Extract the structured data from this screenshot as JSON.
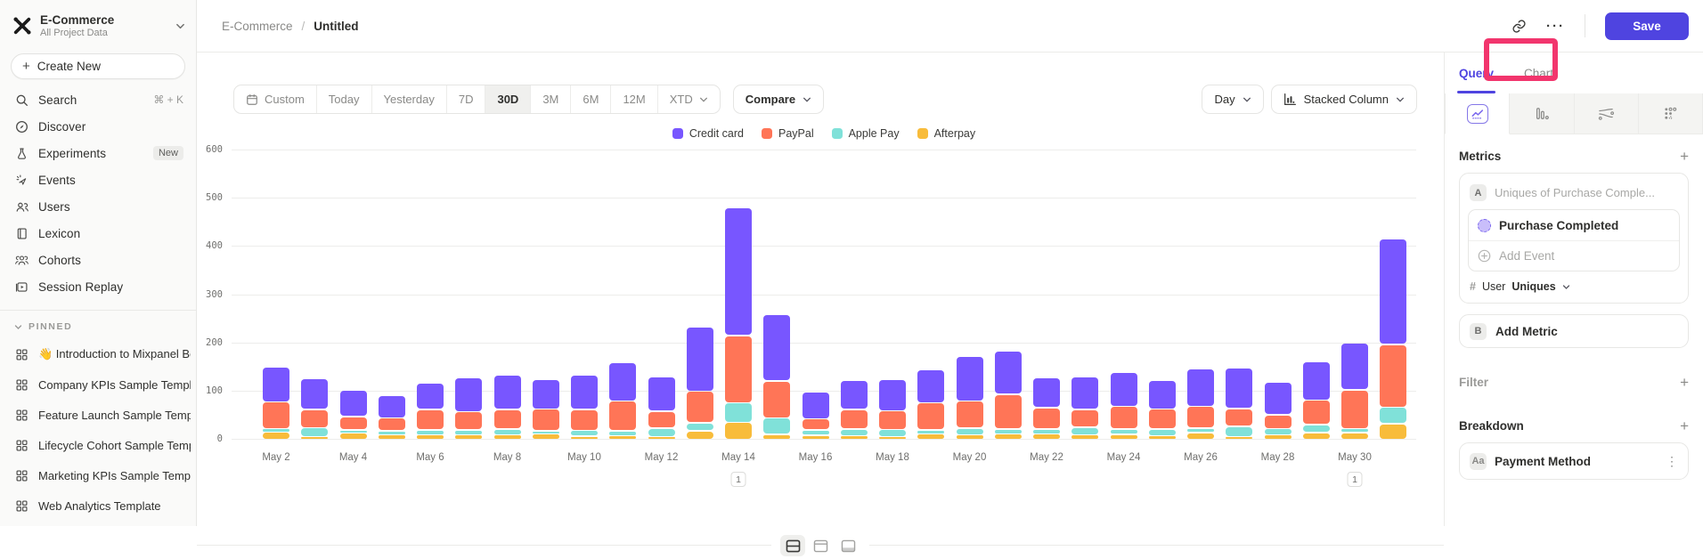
{
  "accent_color": "#4f44e0",
  "highlight_color": "#f2356d",
  "sidebar": {
    "project": {
      "name": "E-Commerce",
      "subtitle": "All Project Data"
    },
    "create_new_label": "Create New",
    "items": [
      {
        "id": "search",
        "label": "Search",
        "icon": "search",
        "shortcut": "⌘ + K"
      },
      {
        "id": "discover",
        "label": "Discover",
        "icon": "compass"
      },
      {
        "id": "experiments",
        "label": "Experiments",
        "icon": "flask",
        "badge": "New"
      },
      {
        "id": "events",
        "label": "Events",
        "icon": "spark"
      },
      {
        "id": "users",
        "label": "Users",
        "icon": "users"
      },
      {
        "id": "lexicon",
        "label": "Lexicon",
        "icon": "book"
      },
      {
        "id": "cohorts",
        "label": "Cohorts",
        "icon": "cohorts"
      },
      {
        "id": "session-replay",
        "label": "Session Replay",
        "icon": "replay"
      }
    ],
    "pinned_title": "PINNED",
    "pinned": [
      {
        "id": "intro",
        "label": "👋 Introduction to Mixpanel Bo"
      },
      {
        "id": "company-kpis",
        "label": "Company KPIs Sample Templat"
      },
      {
        "id": "feature-launch",
        "label": "Feature Launch Sample Templa"
      },
      {
        "id": "lifecycle",
        "label": "Lifecycle Cohort Sample Temp"
      },
      {
        "id": "marketing-kpis",
        "label": "Marketing KPIs Sample Templat"
      },
      {
        "id": "web-analytics",
        "label": "Web Analytics Template"
      }
    ]
  },
  "header": {
    "breadcrumb_root": "E-Commerce",
    "breadcrumb_sep": "/",
    "breadcrumb_current": "Untitled",
    "save_label": "Save",
    "ellipsis": "···"
  },
  "toolbar": {
    "ranges": [
      "Custom",
      "Today",
      "Yesterday",
      "7D",
      "30D",
      "3M",
      "6M",
      "12M",
      "XTD"
    ],
    "active_range": "30D",
    "compare_label": "Compare",
    "granularity_label": "Day",
    "chart_type_label": "Stacked Column"
  },
  "right_panel": {
    "tabs": [
      "Query",
      "Chart"
    ],
    "active_tab": "Query",
    "metrics_title": "Metrics",
    "metric_a": {
      "badge": "A",
      "summary": "Uniques of Purchase Comple...",
      "event_name": "Purchase Completed",
      "add_event_label": "Add Event",
      "measure_symbol": "#",
      "measure_entity": "User",
      "measure_type": "Uniques"
    },
    "metric_b": {
      "badge": "B",
      "label": "Add Metric"
    },
    "filter_title": "Filter",
    "breakdown_title": "Breakdown",
    "breakdown_item": {
      "badge": "Aa",
      "label": "Payment Method"
    }
  },
  "chart_data": {
    "type": "bar",
    "stacked": true,
    "title": "",
    "xlabel": "",
    "ylabel": "",
    "ylim": [
      0,
      600
    ],
    "yticks": [
      0,
      100,
      200,
      300,
      400,
      500,
      600
    ],
    "grid": true,
    "legend_position": "top",
    "categories": [
      "May 2",
      "May 3",
      "May 4",
      "May 5",
      "May 6",
      "May 7",
      "May 8",
      "May 9",
      "May 10",
      "May 11",
      "May 12",
      "May 13",
      "May 14",
      "May 15",
      "May 16",
      "May 17",
      "May 18",
      "May 19",
      "May 20",
      "May 21",
      "May 22",
      "May 23",
      "May 24",
      "May 25",
      "May 26",
      "May 27",
      "May 28",
      "May 29",
      "May 30",
      "May 31"
    ],
    "x_tick_labels": [
      "May 2",
      "May 4",
      "May 6",
      "May 8",
      "May 10",
      "May 12",
      "May 14",
      "May 16",
      "May 18",
      "May 20",
      "May 22",
      "May 24",
      "May 26",
      "May 28",
      "May 30"
    ],
    "series": [
      {
        "name": "Credit card",
        "color": "#7856FF",
        "values": [
          72,
          64,
          55,
          46,
          56,
          70,
          71,
          62,
          71,
          80,
          71,
          133,
          265,
          138,
          56,
          61,
          66,
          69,
          92,
          89,
          62,
          69,
          70,
          59,
          77,
          85,
          69,
          80,
          97,
          220
        ]
      },
      {
        "name": "PayPal",
        "color": "#FF7557",
        "values": [
          55,
          38,
          28,
          27,
          42,
          38,
          40,
          45,
          43,
          62,
          35,
          65,
          140,
          76,
          23,
          40,
          39,
          56,
          56,
          72,
          44,
          37,
          47,
          41,
          45,
          37,
          28,
          51,
          80,
          130
        ]
      },
      {
        "name": "Apple Pay",
        "color": "#80E1D9",
        "values": [
          8,
          18,
          7,
          8,
          10,
          10,
          12,
          5,
          12,
          10,
          17,
          17,
          40,
          34,
          11,
          14,
          14,
          8,
          14,
          10,
          10,
          15,
          11,
          14,
          10,
          21,
          13,
          17,
          9,
          34
        ]
      },
      {
        "name": "Afterpay",
        "color": "#F8BC3B",
        "values": [
          15,
          5,
          13,
          10,
          10,
          10,
          10,
          12,
          7,
          8,
          5,
          18,
          36,
          11,
          9,
          8,
          6,
          12,
          10,
          12,
          12,
          10,
          11,
          8,
          14,
          4,
          10,
          14,
          14,
          33
        ]
      }
    ],
    "annotations": [
      {
        "category": "May 14",
        "label": "1"
      },
      {
        "category": "May 30",
        "label": "1"
      }
    ]
  }
}
